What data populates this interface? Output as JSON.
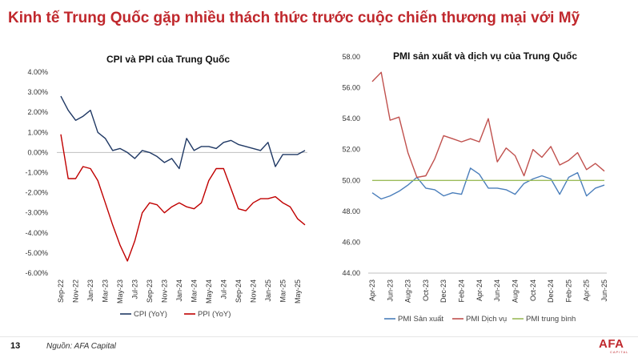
{
  "slide": {
    "title": "Kinh tế Trung Quốc gặp nhiều thách thức trước cuộc chiến thương mại với Mỹ",
    "page_number": "13",
    "source": "Nguồn: AFA Capital",
    "logo_text": "AFA",
    "logo_subtext": "CAPITAL"
  },
  "colors": {
    "title": "#c0282d",
    "cpi": "#1f3864",
    "ppi": "#c00000",
    "pmi_mfg": "#4a7ebb",
    "pmi_svc": "#c0504d",
    "pmi_avg": "#9bbb59"
  },
  "chart_data": [
    {
      "type": "line",
      "title": "CPI và PPI của Trung Quốc",
      "xlabel": "",
      "ylabel": "",
      "ylim": [
        -6,
        4
      ],
      "y_ticks": [
        "4.00%",
        "3.00%",
        "2.00%",
        "1.00%",
        "0.00%",
        "-1.00%",
        "-2.00%",
        "-3.00%",
        "-4.00%",
        "-5.00%",
        "-6.00%"
      ],
      "x": [
        "Sep-22",
        "Oct-22",
        "Nov-22",
        "Dec-22",
        "Jan-23",
        "Feb-23",
        "Mar-23",
        "Apr-23",
        "May-23",
        "Jun-23",
        "Jul-23",
        "Aug-23",
        "Sep-23",
        "Oct-23",
        "Nov-23",
        "Dec-23",
        "Jan-24",
        "Feb-24",
        "Mar-24",
        "Apr-24",
        "May-24",
        "Jun-24",
        "Jul-24",
        "Aug-24",
        "Sep-24",
        "Oct-24",
        "Nov-24",
        "Dec-24",
        "Jan-25",
        "Feb-25",
        "Mar-25",
        "Apr-25",
        "May-25",
        "Jun-25"
      ],
      "x_tick_labels": [
        "Sep-22",
        "Nov-22",
        "Jan-23",
        "Mar-23",
        "May-23",
        "Jul-23",
        "Sep-23",
        "Nov-23",
        "Jan-24",
        "Mar-24",
        "May-24",
        "Jul-24",
        "Sep-24",
        "Nov-24",
        "Jan-25",
        "Mar-25",
        "May-25"
      ],
      "legend": "bottom",
      "series": [
        {
          "name": "CPI (YoY)",
          "values": [
            2.8,
            2.1,
            1.6,
            1.8,
            2.1,
            1.0,
            0.7,
            0.1,
            0.2,
            0.0,
            -0.3,
            0.1,
            0.0,
            -0.2,
            -0.5,
            -0.3,
            -0.8,
            0.7,
            0.1,
            0.3,
            0.3,
            0.2,
            0.5,
            0.6,
            0.4,
            0.3,
            0.2,
            0.1,
            0.5,
            -0.7,
            -0.1,
            -0.1,
            -0.1,
            0.1
          ]
        },
        {
          "name": "PPI (YoY)",
          "values": [
            0.9,
            -1.3,
            -1.3,
            -0.7,
            -0.8,
            -1.4,
            -2.5,
            -3.6,
            -4.6,
            -5.4,
            -4.4,
            -3.0,
            -2.5,
            -2.6,
            -3.0,
            -2.7,
            -2.5,
            -2.7,
            -2.8,
            -2.5,
            -1.4,
            -0.8,
            -0.8,
            -1.8,
            -2.8,
            -2.9,
            -2.5,
            -2.3,
            -2.3,
            -2.2,
            -2.5,
            -2.7,
            -3.3,
            -3.6
          ]
        }
      ]
    },
    {
      "type": "line",
      "title": "PMI sản xuất và dịch vụ của Trung Quốc",
      "xlabel": "",
      "ylabel": "",
      "ylim": [
        44,
        58
      ],
      "y_ticks": [
        "58.00",
        "56.00",
        "54.00",
        "52.00",
        "50.00",
        "48.00",
        "46.00",
        "44.00"
      ],
      "x": [
        "Apr-23",
        "May-23",
        "Jun-23",
        "Jul-23",
        "Aug-23",
        "Sep-23",
        "Oct-23",
        "Nov-23",
        "Dec-23",
        "Jan-24",
        "Feb-24",
        "Mar-24",
        "Apr-24",
        "May-24",
        "Jun-24",
        "Jul-24",
        "Aug-24",
        "Sep-24",
        "Oct-24",
        "Nov-24",
        "Dec-24",
        "Jan-25",
        "Feb-25",
        "Mar-25",
        "Apr-25",
        "May-25",
        "Jun-25"
      ],
      "x_tick_labels": [
        "Apr-23",
        "Jun-23",
        "Aug-23",
        "Oct-23",
        "Dec-23",
        "Feb-24",
        "Apr-24",
        "Jun-24",
        "Aug-24",
        "Oct-24",
        "Dec-24",
        "Feb-25",
        "Apr-25",
        "Jun-25"
      ],
      "legend": "bottom",
      "series": [
        {
          "name": "PMI Sản xuất",
          "values": [
            49.2,
            48.8,
            49.0,
            49.3,
            49.7,
            50.2,
            49.5,
            49.4,
            49.0,
            49.2,
            49.1,
            50.8,
            50.4,
            49.5,
            49.5,
            49.4,
            49.1,
            49.8,
            50.1,
            50.3,
            50.1,
            49.1,
            50.2,
            50.5,
            49.0,
            49.5,
            49.7
          ]
        },
        {
          "name": "PMI Dịch vụ",
          "values": [
            56.4,
            57.0,
            53.9,
            54.1,
            51.8,
            50.2,
            50.3,
            51.4,
            52.9,
            52.7,
            52.5,
            52.7,
            52.5,
            54.0,
            51.2,
            52.1,
            51.6,
            50.3,
            52.0,
            51.5,
            52.2,
            51.0,
            51.3,
            51.8,
            50.7,
            51.1,
            50.6
          ]
        },
        {
          "name": "PMI trung bình",
          "values": [
            50,
            50,
            50,
            50,
            50,
            50,
            50,
            50,
            50,
            50,
            50,
            50,
            50,
            50,
            50,
            50,
            50,
            50,
            50,
            50,
            50,
            50,
            50,
            50,
            50,
            50,
            50
          ]
        }
      ]
    }
  ]
}
